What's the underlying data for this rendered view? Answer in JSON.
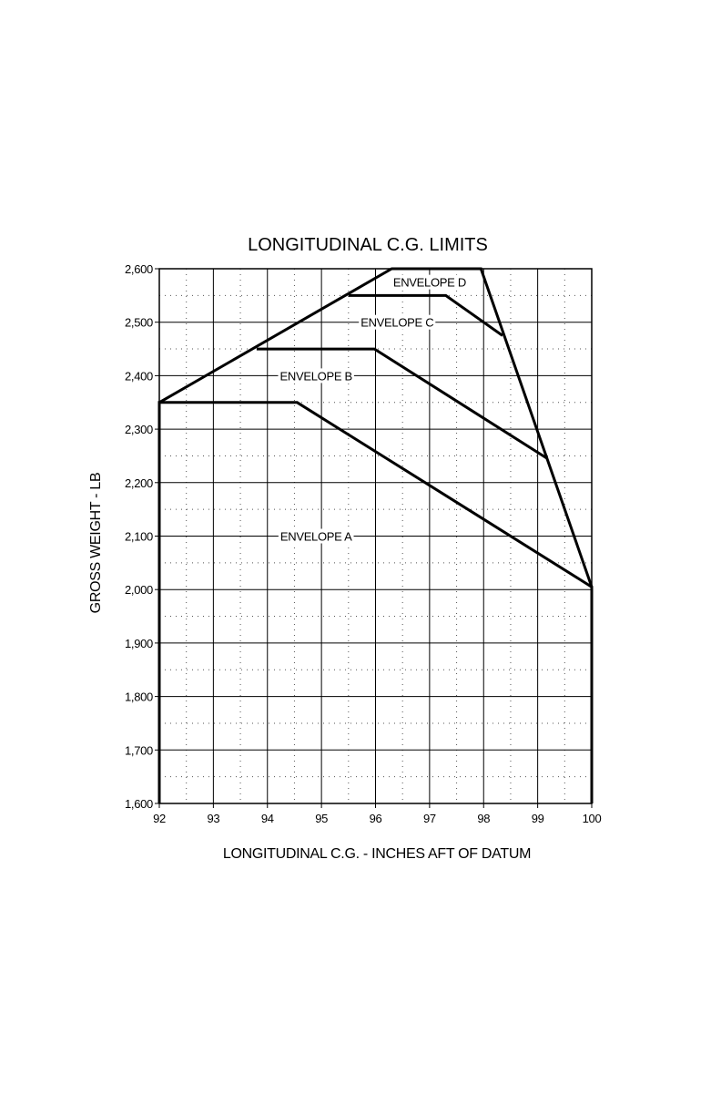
{
  "chart_data": {
    "type": "line",
    "title": "LONGITUDINAL C.G. LIMITS",
    "xlabel": "LONGITUDINAL C.G. - INCHES AFT OF DATUM",
    "ylabel": "GROSS WEIGHT - LB",
    "xlim": [
      92,
      100
    ],
    "ylim": [
      1600,
      2600
    ],
    "x_ticks": [
      92,
      93,
      94,
      95,
      96,
      97,
      98,
      99,
      100
    ],
    "x_tick_labels": [
      "92",
      "93",
      "94",
      "95",
      "96",
      "97",
      "98",
      "99",
      "100"
    ],
    "y_ticks": [
      1600,
      1700,
      1800,
      1900,
      2000,
      2100,
      2200,
      2300,
      2400,
      2500,
      2600
    ],
    "y_tick_labels": [
      "1,600",
      "1,700",
      "1,800",
      "1,900",
      "2,000",
      "2,100",
      "2,200",
      "2,300",
      "2,400",
      "2,500",
      "2,600"
    ],
    "grid": true,
    "minor_grid": "dotted",
    "series": [
      {
        "name": "ENVELOPE A",
        "x": [
          92,
          92,
          94.55,
          100,
          100
        ],
        "y": [
          1600,
          2350,
          2350,
          2005,
          1600
        ]
      },
      {
        "name": "ENVELOPE B",
        "x": [
          93.8,
          95.98,
          99.18
        ],
        "y": [
          2450,
          2450,
          2245
        ]
      },
      {
        "name": "ENVELOPE C",
        "x": [
          95.5,
          97.3,
          98.35
        ],
        "y": [
          2550,
          2550,
          2475
        ]
      },
      {
        "name": "ENVELOPE D",
        "x": [
          92,
          96.3,
          97.95,
          100
        ],
        "y": [
          2350,
          2600,
          2600,
          2005
        ]
      }
    ],
    "label_points": [
      {
        "name": "ENVELOPE D",
        "x": 97.0,
        "y": 2575
      },
      {
        "name": "ENVELOPE C",
        "x": 96.4,
        "y": 2500
      },
      {
        "name": "ENVELOPE B",
        "x": 94.9,
        "y": 2400
      },
      {
        "name": "ENVELOPE A",
        "x": 94.9,
        "y": 2100
      }
    ]
  }
}
